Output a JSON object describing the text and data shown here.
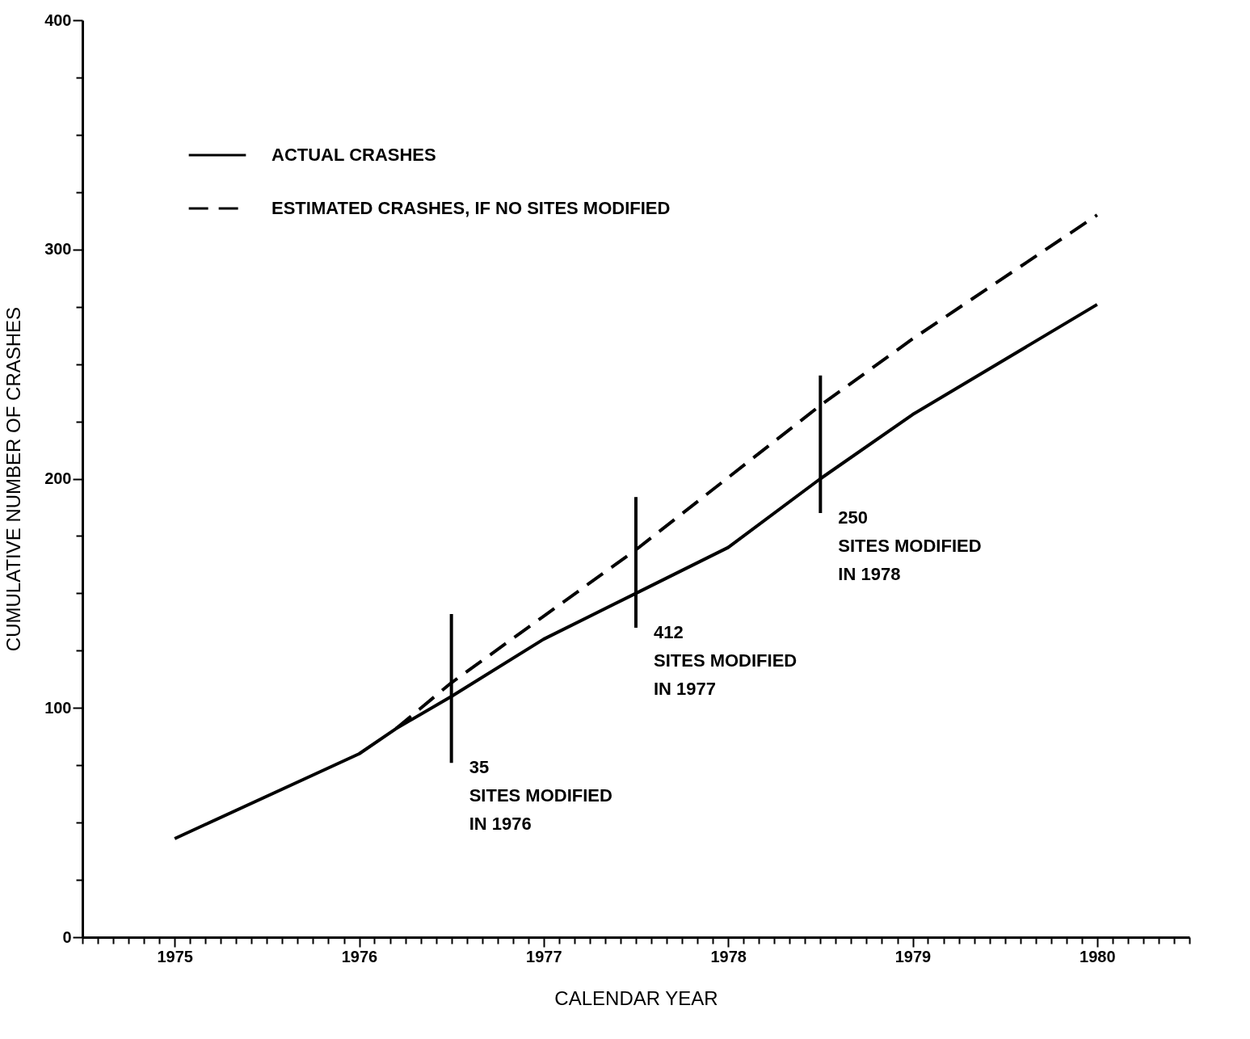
{
  "chart_data": {
    "type": "line",
    "xlabel": "CALENDAR YEAR",
    "ylabel": "CUMULATIVE NUMBER OF CRASHES",
    "xlim": [
      1975,
      1981
    ],
    "ylim": [
      0,
      400
    ],
    "xticks": [
      {
        "value": 1975,
        "label": null
      },
      {
        "value": 1975.083,
        "label": null
      },
      {
        "value": 1975.167,
        "label": null
      },
      {
        "value": 1975.25,
        "label": null
      },
      {
        "value": 1975.333,
        "label": null
      },
      {
        "value": 1975.417,
        "label": null
      },
      {
        "value": 1975.5,
        "label": "1975"
      },
      {
        "value": 1975.583,
        "label": null
      },
      {
        "value": 1975.667,
        "label": null
      },
      {
        "value": 1975.75,
        "label": null
      },
      {
        "value": 1975.833,
        "label": null
      },
      {
        "value": 1975.917,
        "label": null
      },
      {
        "value": 1976,
        "label": null
      },
      {
        "value": 1976.083,
        "label": null
      },
      {
        "value": 1976.167,
        "label": null
      },
      {
        "value": 1976.25,
        "label": null
      },
      {
        "value": 1976.333,
        "label": null
      },
      {
        "value": 1976.417,
        "label": null
      },
      {
        "value": 1976.5,
        "label": "1976"
      },
      {
        "value": 1976.583,
        "label": null
      },
      {
        "value": 1976.667,
        "label": null
      },
      {
        "value": 1976.75,
        "label": null
      },
      {
        "value": 1976.833,
        "label": null
      },
      {
        "value": 1976.917,
        "label": null
      },
      {
        "value": 1977,
        "label": null
      },
      {
        "value": 1977.083,
        "label": null
      },
      {
        "value": 1977.167,
        "label": null
      },
      {
        "value": 1977.25,
        "label": null
      },
      {
        "value": 1977.333,
        "label": null
      },
      {
        "value": 1977.417,
        "label": null
      },
      {
        "value": 1977.5,
        "label": "1977"
      },
      {
        "value": 1977.583,
        "label": null
      },
      {
        "value": 1977.667,
        "label": null
      },
      {
        "value": 1977.75,
        "label": null
      },
      {
        "value": 1977.833,
        "label": null
      },
      {
        "value": 1977.917,
        "label": null
      },
      {
        "value": 1978,
        "label": null
      },
      {
        "value": 1978.083,
        "label": null
      },
      {
        "value": 1978.167,
        "label": null
      },
      {
        "value": 1978.25,
        "label": null
      },
      {
        "value": 1978.333,
        "label": null
      },
      {
        "value": 1978.417,
        "label": null
      },
      {
        "value": 1978.5,
        "label": "1978"
      },
      {
        "value": 1978.583,
        "label": null
      },
      {
        "value": 1978.667,
        "label": null
      },
      {
        "value": 1978.75,
        "label": null
      },
      {
        "value": 1978.833,
        "label": null
      },
      {
        "value": 1978.917,
        "label": null
      },
      {
        "value": 1979,
        "label": null
      },
      {
        "value": 1979.083,
        "label": null
      },
      {
        "value": 1979.167,
        "label": null
      },
      {
        "value": 1979.25,
        "label": null
      },
      {
        "value": 1979.333,
        "label": null
      },
      {
        "value": 1979.417,
        "label": null
      },
      {
        "value": 1979.5,
        "label": "1979"
      },
      {
        "value": 1979.583,
        "label": null
      },
      {
        "value": 1979.667,
        "label": null
      },
      {
        "value": 1979.75,
        "label": null
      },
      {
        "value": 1979.833,
        "label": null
      },
      {
        "value": 1979.917,
        "label": null
      },
      {
        "value": 1980,
        "label": null
      },
      {
        "value": 1980.083,
        "label": null
      },
      {
        "value": 1980.167,
        "label": null
      },
      {
        "value": 1980.25,
        "label": null
      },
      {
        "value": 1980.333,
        "label": null
      },
      {
        "value": 1980.417,
        "label": null
      },
      {
        "value": 1980.5,
        "label": "1980"
      },
      {
        "value": 1980.583,
        "label": null
      },
      {
        "value": 1980.667,
        "label": null
      },
      {
        "value": 1980.75,
        "label": null
      },
      {
        "value": 1980.833,
        "label": null
      },
      {
        "value": 1980.917,
        "label": null
      },
      {
        "value": 1981,
        "label": null
      }
    ],
    "yticks": [
      0,
      {
        "value": 25,
        "label": null
      },
      {
        "value": 50,
        "label": null
      },
      {
        "value": 75,
        "label": null
      },
      100,
      {
        "value": 125,
        "label": null
      },
      {
        "value": 150,
        "label": null
      },
      {
        "value": 175,
        "label": null
      },
      200,
      {
        "value": 225,
        "label": null
      },
      {
        "value": 250,
        "label": null
      },
      {
        "value": 275,
        "label": null
      },
      300,
      {
        "value": 325,
        "label": null
      },
      {
        "value": 350,
        "label": null
      },
      {
        "value": 375,
        "label": null
      },
      400
    ],
    "grid": false,
    "legend": "top left",
    "marker": "none",
    "series": [
      {
        "name": "ACTUAL CRASHES",
        "color": "#000000",
        "line_style": "solid",
        "x": [
          1975.5,
          1976.5,
          1976.7,
          1977,
          1977.5,
          1978,
          1978.5,
          1979,
          1979.5,
          1980.5
        ],
        "values": [
          43,
          80,
          91,
          105,
          130,
          150,
          170,
          200,
          228,
          276
        ]
      },
      {
        "name": "ESTIMATED CRASHES, IF NO SITES MODIFIED",
        "color": "#000000",
        "line_style": "dashed",
        "x": [
          1976.7,
          1977,
          1978,
          1979,
          1979.5,
          1980.5
        ],
        "values": [
          91,
          111,
          169,
          232,
          261,
          315
        ]
      },
      {
        "color": "#000000",
        "line_style": "solid",
        "x": [
          1977,
          1977
        ],
        "values": [
          76,
          141
        ]
      },
      {
        "color": "#000000",
        "line_style": "solid",
        "x": [
          1978,
          1978
        ],
        "values": [
          135,
          192
        ]
      },
      {
        "color": "#000000",
        "line_style": "solid",
        "x": [
          1979,
          1979
        ],
        "values": [
          185,
          245
        ]
      }
    ],
    "annotations": [
      {
        "text": "35\nSITES MODIFIED\nIN 1976",
        "x": 1977,
        "y": 76
      },
      {
        "text": "412\nSITES MODIFIED\nIN 1977",
        "x": 1978,
        "y": 135
      },
      {
        "text": "250\nSITES MODIFIED\nIN 1978",
        "x": 1979,
        "y": 185
      }
    ]
  }
}
